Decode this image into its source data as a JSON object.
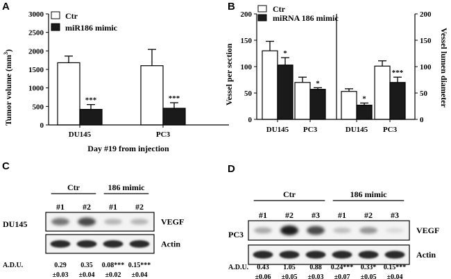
{
  "chart_data": [
    {
      "panel": "A",
      "type": "bar",
      "ylabel": "Tumor volume (mm",
      "ylabel_sup": "3",
      "ylabel_end": ")",
      "xlabel": "Day #19 from injection",
      "ylim": [
        0,
        3000
      ],
      "yticks": [
        "0",
        "500",
        "1000",
        "1500",
        "2000",
        "2500",
        "3000"
      ],
      "categories": [
        "DU145",
        "PC3"
      ],
      "series": [
        {
          "name": "Ctr",
          "fill": "#ffffff",
          "values": [
            1680,
            1600
          ],
          "errors": [
            180,
            440
          ]
        },
        {
          "name": "miR186 mimic",
          "fill": "#1a1a1a",
          "values": [
            420,
            450
          ],
          "errors": [
            130,
            150
          ]
        }
      ],
      "annotations": [
        "***",
        "***"
      ]
    },
    {
      "panel": "B",
      "type": "bar",
      "ylabel_left": "Vessel per section",
      "ylabel_right": "Vessel lumen diameter",
      "ylim_left": [
        0,
        200
      ],
      "ylim_right": [
        0,
        200
      ],
      "yticks_left": [
        "0",
        "50",
        "100",
        "150",
        "200"
      ],
      "yticks_right": [
        "0",
        "50",
        "100",
        "150",
        "200"
      ],
      "series_names": [
        "Ctr",
        "miRNA 186 mimic"
      ],
      "groups": [
        {
          "label": "DU145",
          "axis": "left",
          "ctr": 130,
          "ctr_err": 18,
          "mimic": 103,
          "mimic_err": 14,
          "mark": "*"
        },
        {
          "label": "PC3",
          "axis": "left",
          "ctr": 70,
          "ctr_err": 10,
          "mimic": 57,
          "mimic_err": 3,
          "mark": "*"
        },
        {
          "label": "DU145",
          "axis": "right",
          "ctr": 53,
          "ctr_err": 5,
          "mimic": 27,
          "mimic_err": 4,
          "mark": "*"
        },
        {
          "label": "PC3",
          "axis": "right",
          "ctr": 101,
          "ctr_err": 10,
          "mimic": 70,
          "mimic_err": 10,
          "mark": "***"
        }
      ]
    }
  ],
  "blots": [
    {
      "panel": "C",
      "cell_line": "DU145",
      "group_labels": [
        "Ctr",
        "186 mimic"
      ],
      "lanes": [
        "#1",
        "#2",
        "#1",
        "#2"
      ],
      "bands": [
        "VEGF",
        "Actin"
      ],
      "vegf_intensity": [
        0.55,
        0.75,
        0.25,
        0.25
      ],
      "adu_label": "A.D.U.",
      "adu_values": [
        "0.29",
        "0.35",
        "0.08***",
        "0.15***"
      ],
      "adu_errors": [
        "±0.03",
        "±0.04",
        "±0.02",
        "±0.04"
      ]
    },
    {
      "panel": "D",
      "cell_line": "PC3",
      "group_labels": [
        "Ctr",
        "186 mimic"
      ],
      "lanes": [
        "#1",
        "#2",
        "#3",
        "#1",
        "#2",
        "#3"
      ],
      "bands": [
        "VEGF",
        "Actin"
      ],
      "vegf_intensity": [
        0.3,
        0.95,
        0.75,
        0.2,
        0.4,
        0.08
      ],
      "adu_label": "A.D.U.",
      "adu_values": [
        "0.43",
        "1.05",
        "0.88",
        "0.24***",
        "0.33*",
        "0.15***"
      ],
      "adu_errors": [
        "±0.06",
        "±0.05",
        "±0.03",
        "±0.07",
        "±0.05",
        "±0.04"
      ]
    }
  ]
}
